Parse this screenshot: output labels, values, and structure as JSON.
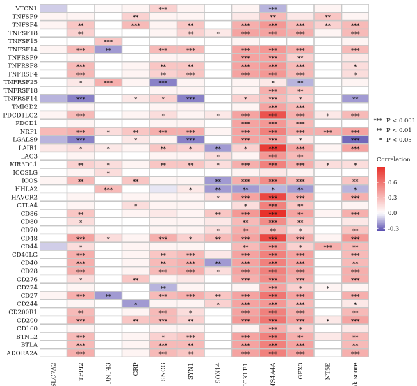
{
  "chart_data": {
    "type": "heatmap",
    "title": "",
    "xlabel": "",
    "ylabel": "",
    "columns": [
      "SLC7A2",
      "TFPI2",
      "RNF43",
      "GRP",
      "SNCG",
      "SYN1",
      "SOX14",
      "PRICKLE1",
      "MS4A4A",
      "GPX3",
      "NT5E",
      "Risk score"
    ],
    "rows": [
      "VTCN1",
      "TNFSF9",
      "TNFSF4",
      "TNFSF18",
      "TNFSF15",
      "TNFSF14",
      "TNFRSF9",
      "TNFRSF8",
      "TNFRSF4",
      "TNFRSF25",
      "TNFRSF18",
      "TNFRSF14",
      "TMIGD2",
      "PDCD1LG2",
      "PDCD1",
      "NRP1",
      "LGALS9",
      "LAIR1",
      "LAG3",
      "KIR3DL1",
      "ICOSLG",
      "ICOS",
      "HHLA2",
      "HAVCR2",
      "CTLA4",
      "CD86",
      "CD80",
      "CD70",
      "CD48",
      "CD44",
      "CD40LG",
      "CD40",
      "CD28",
      "CD276",
      "CD274",
      "CD27",
      "CD244",
      "CD200R1",
      "CD200",
      "CD160",
      "BTNL2",
      "BTLA",
      "ADORA2A"
    ],
    "values": [
      [
        -0.1,
        0.0,
        0.02,
        0.05,
        0.2,
        0.05,
        0.0,
        0.05,
        -0.15,
        0.0,
        0.05,
        0.0
      ],
      [
        0.05,
        0.05,
        0.0,
        0.2,
        0.05,
        0.05,
        0.0,
        0.1,
        0.3,
        0.1,
        0.25,
        0.05
      ],
      [
        0.05,
        0.25,
        0.0,
        0.3,
        0.05,
        0.25,
        0.0,
        0.35,
        0.45,
        0.3,
        0.2,
        0.3
      ],
      [
        0.0,
        0.2,
        0.0,
        0.0,
        0.05,
        0.2,
        0.1,
        0.4,
        0.4,
        0.35,
        0.05,
        0.3
      ],
      [
        0.0,
        0.0,
        0.25,
        0.0,
        0.0,
        0.0,
        0.0,
        0.05,
        0.0,
        0.0,
        0.0,
        0.05
      ],
      [
        0.05,
        0.3,
        -0.2,
        0.0,
        0.3,
        0.3,
        0.0,
        0.4,
        0.45,
        0.35,
        0.0,
        0.3
      ],
      [
        0.0,
        0.05,
        0.0,
        0.0,
        0.05,
        0.05,
        0.0,
        0.4,
        0.4,
        0.2,
        0.0,
        0.1
      ],
      [
        0.0,
        0.3,
        0.0,
        0.05,
        0.25,
        0.25,
        0.0,
        0.4,
        0.45,
        0.3,
        0.0,
        0.15
      ],
      [
        0.0,
        0.3,
        0.0,
        0.05,
        0.2,
        0.25,
        0.0,
        0.4,
        0.45,
        0.3,
        0.0,
        0.15
      ],
      [
        0.0,
        0.1,
        0.35,
        0.05,
        -0.25,
        0.05,
        0.0,
        0.05,
        0.1,
        -0.15,
        0.0,
        0.05
      ],
      [
        0.0,
        0.05,
        0.0,
        0.0,
        0.05,
        0.05,
        0.0,
        0.05,
        0.35,
        0.25,
        0.0,
        0.0
      ],
      [
        -0.15,
        -0.25,
        0.0,
        0.1,
        0.2,
        -0.25,
        0.0,
        0.2,
        0.3,
        0.2,
        0.0,
        -0.2
      ],
      [
        0.0,
        0.05,
        0.0,
        0.0,
        0.05,
        0.05,
        0.0,
        0.05,
        0.4,
        0.3,
        0.0,
        0.0
      ],
      [
        0.05,
        0.3,
        0.0,
        0.05,
        0.15,
        0.05,
        0.1,
        0.4,
        0.75,
        0.35,
        0.1,
        0.3
      ],
      [
        0.0,
        0.05,
        0.0,
        0.0,
        0.05,
        0.05,
        0.0,
        0.4,
        0.45,
        0.3,
        0.0,
        0.0
      ],
      [
        0.3,
        0.35,
        0.15,
        0.25,
        0.35,
        0.35,
        0.05,
        0.4,
        0.55,
        0.35,
        0.35,
        0.4
      ],
      [
        -0.15,
        -0.25,
        0.0,
        0.1,
        0.05,
        -0.25,
        0.0,
        0.4,
        0.4,
        0.1,
        0.0,
        -0.3
      ],
      [
        0.1,
        0.15,
        0.1,
        0.05,
        0.25,
        0.2,
        -0.2,
        0.2,
        0.85,
        0.4,
        0.05,
        0.4
      ],
      [
        0.0,
        0.05,
        0.0,
        0.0,
        0.05,
        0.05,
        0.15,
        0.05,
        0.45,
        0.3,
        0.0,
        0.0
      ],
      [
        0.0,
        0.2,
        0.15,
        0.05,
        0.25,
        0.25,
        0.15,
        0.35,
        0.55,
        0.35,
        0.15,
        0.15
      ],
      [
        0.0,
        0.05,
        0.15,
        0.0,
        0.0,
        0.0,
        0.0,
        0.05,
        0.1,
        0.05,
        0.0,
        0.0
      ],
      [
        0.05,
        0.3,
        0.0,
        0.25,
        0.05,
        0.05,
        -0.2,
        0.35,
        0.5,
        0.3,
        0.0,
        0.25
      ],
      [
        0.0,
        0.0,
        0.3,
        0.0,
        -0.05,
        0.1,
        -0.2,
        -0.2,
        -0.15,
        -0.2,
        0.0,
        -0.15
      ],
      [
        0.0,
        0.05,
        0.0,
        0.05,
        0.05,
        0.05,
        0.15,
        0.4,
        0.8,
        0.35,
        0.0,
        0.35
      ],
      [
        0.0,
        0.05,
        0.0,
        0.15,
        0.05,
        0.05,
        0.0,
        0.15,
        0.55,
        0.25,
        0.0,
        0.05
      ],
      [
        0.0,
        0.25,
        0.0,
        0.05,
        0.1,
        0.05,
        0.25,
        0.45,
        0.9,
        0.4,
        0.05,
        0.35
      ],
      [
        0.0,
        0.15,
        0.0,
        0.0,
        0.05,
        0.05,
        0.1,
        0.3,
        0.5,
        0.25,
        0.0,
        0.1
      ],
      [
        0.0,
        0.05,
        0.0,
        0.0,
        0.05,
        0.05,
        0.15,
        0.35,
        0.3,
        0.15,
        0.0,
        0.25
      ],
      [
        0.0,
        0.4,
        0.15,
        0.05,
        0.35,
        0.2,
        0.3,
        0.4,
        0.8,
        0.35,
        0.05,
        0.45
      ],
      [
        -0.1,
        0.15,
        0.0,
        0.05,
        0.05,
        0.05,
        0.0,
        0.3,
        0.45,
        0.2,
        0.35,
        0.3
      ],
      [
        0.0,
        0.35,
        0.0,
        0.05,
        0.25,
        0.3,
        0.1,
        0.4,
        0.55,
        0.4,
        0.0,
        0.3
      ],
      [
        0.0,
        0.35,
        0.0,
        0.05,
        0.3,
        0.35,
        -0.2,
        0.4,
        0.55,
        0.4,
        0.0,
        0.3
      ],
      [
        0.0,
        0.35,
        0.0,
        0.05,
        0.3,
        0.35,
        0.15,
        0.4,
        0.55,
        0.4,
        0.0,
        0.35
      ],
      [
        0.0,
        0.15,
        0.0,
        0.25,
        0.05,
        0.1,
        0.0,
        0.35,
        0.5,
        0.35,
        0.0,
        0.35
      ],
      [
        0.0,
        0.05,
        0.0,
        0.0,
        -0.15,
        0.05,
        0.0,
        0.05,
        0.4,
        0.2,
        0.05,
        0.05
      ],
      [
        0.05,
        0.35,
        -0.2,
        0.0,
        0.3,
        0.35,
        0.25,
        0.4,
        0.6,
        0.4,
        0.0,
        0.35
      ],
      [
        0.0,
        0.05,
        0.0,
        -0.2,
        0.05,
        0.05,
        0.2,
        0.4,
        0.45,
        0.3,
        0.0,
        0.1
      ],
      [
        0.0,
        0.3,
        0.0,
        0.05,
        0.3,
        0.15,
        0.0,
        0.4,
        0.55,
        0.35,
        0.0,
        0.3
      ],
      [
        0.0,
        0.35,
        0.0,
        0.25,
        0.3,
        0.2,
        0.0,
        0.45,
        0.6,
        0.4,
        0.1,
        0.4
      ],
      [
        0.0,
        0.05,
        0.0,
        0.0,
        0.05,
        0.05,
        0.0,
        0.05,
        0.35,
        0.2,
        0.0,
        0.1
      ],
      [
        0.0,
        0.3,
        0.0,
        0.05,
        0.2,
        0.25,
        0.0,
        0.4,
        0.55,
        0.35,
        0.1,
        0.3
      ],
      [
        0.0,
        0.3,
        0.0,
        0.05,
        0.3,
        0.3,
        0.0,
        0.4,
        0.55,
        0.4,
        0.0,
        0.3
      ],
      [
        0.0,
        0.35,
        0.0,
        0.05,
        0.3,
        0.25,
        0.0,
        0.4,
        0.55,
        0.4,
        0.0,
        0.35
      ]
    ],
    "stars": [
      [
        "",
        "",
        "",
        "",
        "***",
        "",
        "",
        "",
        "***",
        "",
        "",
        ""
      ],
      [
        "",
        "",
        "",
        "**",
        "",
        "",
        "",
        "",
        "**",
        "",
        "**",
        ""
      ],
      [
        "",
        "**",
        "",
        "***",
        "",
        "**",
        "",
        "***",
        "***",
        "***",
        "**",
        "***"
      ],
      [
        "",
        "**",
        "",
        "",
        "",
        "**",
        "*",
        "***",
        "***",
        "***",
        "",
        "***"
      ],
      [
        "",
        "",
        "***",
        "",
        "",
        "",
        "",
        "",
        "",
        "",
        "",
        ""
      ],
      [
        "",
        "***",
        "**",
        "",
        "***",
        "***",
        "",
        "***",
        "***",
        "***",
        "",
        "***"
      ],
      [
        "",
        "",
        "",
        "",
        "",
        "",
        "",
        "***",
        "***",
        "**",
        "",
        ""
      ],
      [
        "",
        "***",
        "",
        "",
        "**",
        "**",
        "",
        "***",
        "***",
        "***",
        "",
        "*"
      ],
      [
        "",
        "***",
        "",
        "",
        "**",
        "***",
        "",
        "***",
        "***",
        "***",
        "",
        "*"
      ],
      [
        "",
        "*",
        "***",
        "",
        "***",
        "",
        "",
        "",
        "*",
        "**",
        "",
        ""
      ],
      [
        "",
        "",
        "",
        "",
        "",
        "",
        "",
        "",
        "***",
        "**",
        "",
        ""
      ],
      [
        "",
        "***",
        "",
        "*",
        "*",
        "***",
        "",
        "*",
        "***",
        "*",
        "",
        "**"
      ],
      [
        "",
        "",
        "",
        "",
        "",
        "",
        "",
        "",
        "***",
        "***",
        "",
        ""
      ],
      [
        "",
        "***",
        "",
        "",
        "*",
        "",
        "*",
        "***",
        "***",
        "***",
        "*",
        "***"
      ],
      [
        "",
        "",
        "",
        "",
        "",
        "",
        "",
        "***",
        "***",
        "***",
        "",
        ""
      ],
      [
        "",
        "***",
        "*",
        "**",
        "***",
        "***",
        "",
        "***",
        "***",
        "***",
        "***",
        "***"
      ],
      [
        "",
        "***",
        "",
        "*",
        "",
        "***",
        "",
        "***",
        "***",
        "*",
        "",
        "***"
      ],
      [
        "",
        "*",
        "*",
        "",
        "**",
        "*",
        "**",
        "*",
        "***",
        "***",
        "",
        "***"
      ],
      [
        "",
        "",
        "",
        "",
        "",
        "",
        "*",
        "",
        "***",
        "**",
        "",
        ""
      ],
      [
        "",
        "**",
        "*",
        "",
        "**",
        "**",
        "*",
        "***",
        "***",
        "***",
        "*",
        "*"
      ],
      [
        "",
        "",
        "*",
        "",
        "",
        "",
        "",
        "",
        "",
        "",
        "",
        ""
      ],
      [
        "",
        "**",
        "",
        "**",
        "",
        "",
        "**",
        "***",
        "***",
        "***",
        "",
        "**"
      ],
      [
        "",
        "",
        "***",
        "",
        "",
        "*",
        "**",
        "**",
        "*",
        "**",
        "",
        "*"
      ],
      [
        "",
        "",
        "",
        "",
        "",
        "",
        "*",
        "***",
        "***",
        "***",
        "",
        "***"
      ],
      [
        "",
        "",
        "",
        "*",
        "",
        "",
        "",
        "*",
        "***",
        "**",
        "",
        ""
      ],
      [
        "",
        "**",
        "",
        "",
        "",
        "",
        "**",
        "***",
        "***",
        "**",
        "",
        "***"
      ],
      [
        "",
        "*",
        "",
        "",
        "",
        "",
        "",
        "**",
        "***",
        "**",
        "",
        ""
      ],
      [
        "",
        "",
        "",
        "",
        "",
        "",
        "*",
        "**",
        "**",
        "*",
        "",
        "**"
      ],
      [
        "",
        "***",
        "*",
        "",
        "***",
        "*",
        "**",
        "***",
        "***",
        "***",
        "",
        "***"
      ],
      [
        "",
        "*",
        "",
        "",
        "",
        "",
        "",
        "**",
        "***",
        "*",
        "***",
        "**"
      ],
      [
        "",
        "***",
        "",
        "",
        "**",
        "***",
        "",
        "***",
        "***",
        "***",
        "",
        "***"
      ],
      [
        "",
        "***",
        "",
        "",
        "**",
        "***",
        "**",
        "***",
        "***",
        "***",
        "",
        "**"
      ],
      [
        "",
        "***",
        "",
        "",
        "***",
        "***",
        "*",
        "***",
        "***",
        "***",
        "",
        "***"
      ],
      [
        "",
        "*",
        "",
        "**",
        "",
        "",
        "",
        "***",
        "***",
        "***",
        "",
        "***"
      ],
      [
        "",
        "",
        "",
        "",
        "**",
        "",
        "",
        "",
        "***",
        "*",
        "*",
        ""
      ],
      [
        "",
        "***",
        "**",
        "",
        "***",
        "***",
        "**",
        "***",
        "***",
        "***",
        "",
        "***"
      ],
      [
        "",
        "",
        "",
        "*",
        "",
        "",
        "*",
        "***",
        "***",
        "***",
        "",
        "*"
      ],
      [
        "",
        "**",
        "",
        "",
        "***",
        "*",
        "",
        "***",
        "***",
        "***",
        "",
        "**"
      ],
      [
        "",
        "***",
        "",
        "**",
        "***",
        "**",
        "",
        "***",
        "***",
        "***",
        "*",
        "***"
      ],
      [
        "",
        "",
        "",
        "",
        "",
        "",
        "",
        "",
        "***",
        "*",
        "",
        ""
      ],
      [
        "",
        "***",
        "",
        "",
        "*",
        "***",
        "",
        "***",
        "***",
        "**",
        "",
        "**"
      ],
      [
        "",
        "***",
        "",
        "",
        "***",
        "**",
        "",
        "***",
        "***",
        "***",
        "",
        "**"
      ],
      [
        "",
        "***",
        "",
        "",
        "***",
        "**",
        "",
        "***",
        "***",
        "***",
        "",
        "***"
      ]
    ],
    "significance_legend": [
      {
        "stars": "***",
        "label": "P < 0.001"
      },
      {
        "stars": "**",
        "label": "P < 0.01"
      },
      {
        "stars": "*",
        "label": "P < 0.05"
      }
    ],
    "colorbar": {
      "title": "Correlation",
      "ticks": [
        0.6,
        0.3,
        0.0,
        -0.3
      ],
      "tick_labels": [
        "0.6",
        "0.3",
        "0.0",
        "-0.3"
      ],
      "range": [
        -0.35,
        0.9
      ],
      "colors": {
        "low": "#5a4fb0",
        "mid": "#ffffff",
        "high": "#e8312b"
      }
    },
    "legend_position": "right"
  }
}
